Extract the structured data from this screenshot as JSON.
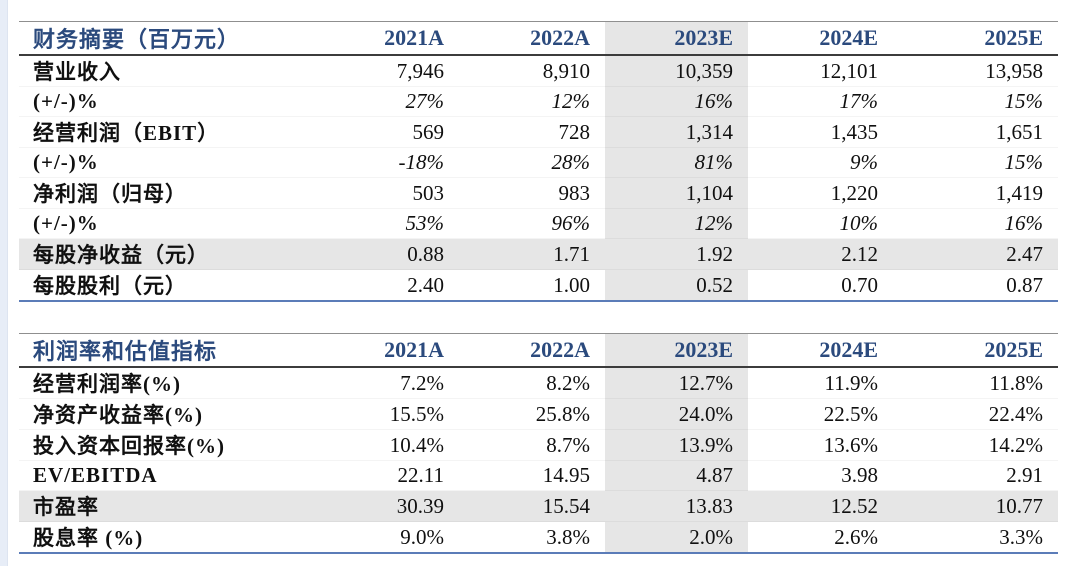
{
  "page": {
    "background": "#ffffff"
  },
  "colors": {
    "header_text": "#2b4a7d",
    "column_highlight": "#e6e6e6",
    "row_highlight": "#e6e6e6",
    "table_bottom_border": "#5b7cb8",
    "header_top_border": "#8f8f8f",
    "header_bottom_border": "#3c3c3c",
    "left_strip": "#e7edf7"
  },
  "tables": [
    {
      "title": "财务摘要（百万元）",
      "columns": [
        "2021A",
        "2022A",
        "2023E",
        "2024E",
        "2025E"
      ],
      "highlight_column": "2023E",
      "highlight_col_index": 2,
      "rows": [
        {
          "label": "营业收入",
          "values": [
            "7,946",
            "8,910",
            "10,359",
            "12,101",
            "13,958"
          ],
          "italic": false,
          "highlight": false
        },
        {
          "label": "(+/-)%",
          "values": [
            "27%",
            "12%",
            "16%",
            "17%",
            "15%"
          ],
          "italic": true,
          "highlight": false
        },
        {
          "label": "经营利润（EBIT）",
          "values": [
            "569",
            "728",
            "1,314",
            "1,435",
            "1,651"
          ],
          "italic": false,
          "highlight": false
        },
        {
          "label": "(+/-)%",
          "values": [
            "-18%",
            "28%",
            "81%",
            "9%",
            "15%"
          ],
          "italic": true,
          "highlight": false
        },
        {
          "label": "净利润（归母）",
          "values": [
            "503",
            "983",
            "1,104",
            "1,220",
            "1,419"
          ],
          "italic": false,
          "highlight": false
        },
        {
          "label": "(+/-)%",
          "values": [
            "53%",
            "96%",
            "12%",
            "10%",
            "16%"
          ],
          "italic": true,
          "highlight": false
        },
        {
          "label": "每股净收益（元）",
          "values": [
            "0.88",
            "1.71",
            "1.92",
            "2.12",
            "2.47"
          ],
          "italic": false,
          "highlight": true
        },
        {
          "label": "每股股利（元）",
          "values": [
            "2.40",
            "1.00",
            "0.52",
            "0.70",
            "0.87"
          ],
          "italic": false,
          "highlight": false
        }
      ]
    },
    {
      "title": "利润率和估值指标",
      "columns": [
        "2021A",
        "2022A",
        "2023E",
        "2024E",
        "2025E"
      ],
      "highlight_column": "2023E",
      "highlight_col_index": 2,
      "rows": [
        {
          "label": "经营利润率(%)",
          "values": [
            "7.2%",
            "8.2%",
            "12.7%",
            "11.9%",
            "11.8%"
          ],
          "italic": false,
          "highlight": false
        },
        {
          "label": "净资产收益率(%)",
          "values": [
            "15.5%",
            "25.8%",
            "24.0%",
            "22.5%",
            "22.4%"
          ],
          "italic": false,
          "highlight": false
        },
        {
          "label": "投入资本回报率(%)",
          "values": [
            "10.4%",
            "8.7%",
            "13.9%",
            "13.6%",
            "14.2%"
          ],
          "italic": false,
          "highlight": false
        },
        {
          "label": "EV/EBITDA",
          "values": [
            "22.11",
            "14.95",
            "4.87",
            "3.98",
            "2.91"
          ],
          "italic": false,
          "highlight": false
        },
        {
          "label": "市盈率",
          "values": [
            "30.39",
            "15.54",
            "13.83",
            "12.52",
            "10.77"
          ],
          "italic": false,
          "highlight": true
        },
        {
          "label": "股息率 (%)",
          "values": [
            "9.0%",
            "3.8%",
            "2.0%",
            "2.6%",
            "3.3%"
          ],
          "italic": false,
          "highlight": false
        }
      ]
    }
  ]
}
